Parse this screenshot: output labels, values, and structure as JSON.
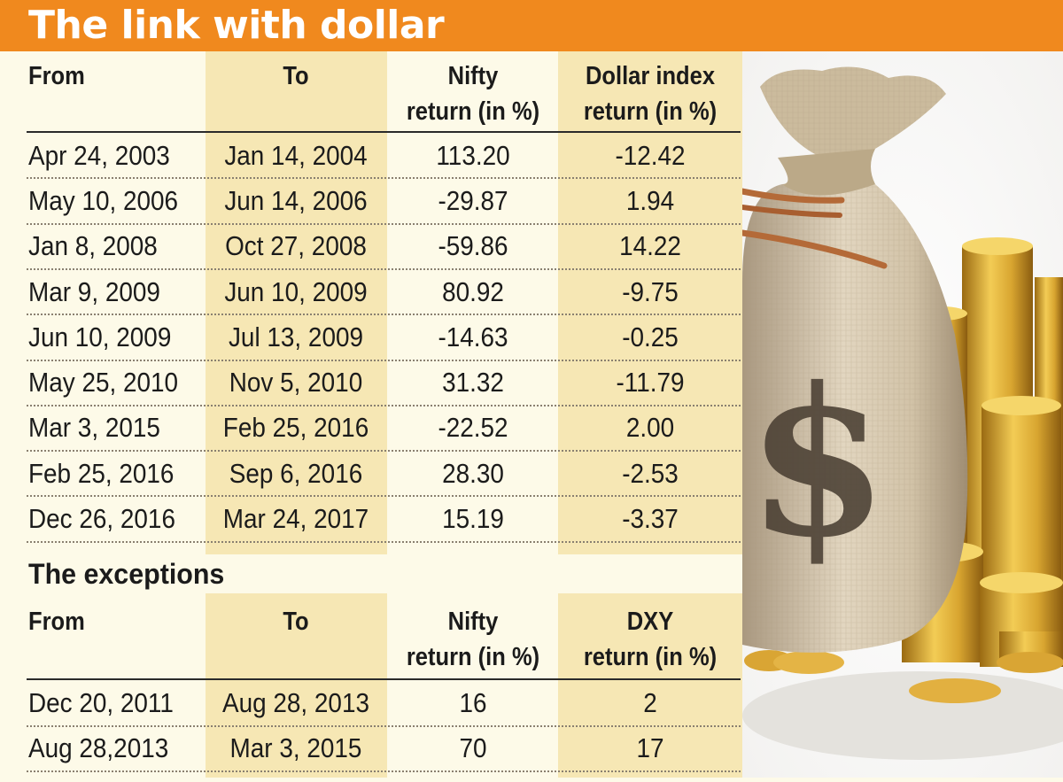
{
  "title": "The link with dollar",
  "chart_data": [
    {
      "type": "table",
      "columns": [
        "From",
        "To",
        "Nifty return (in %)",
        "Dollar index return (in %)"
      ],
      "header_lines": [
        [
          "From"
        ],
        [
          "To"
        ],
        [
          "Nifty",
          "return (in %)"
        ],
        [
          "Dollar index",
          "return (in %)"
        ]
      ],
      "rows": [
        [
          "Apr 24, 2003",
          "Jan 14, 2004",
          "113.20",
          "-12.42"
        ],
        [
          "May 10, 2006",
          "Jun 14, 2006",
          "-29.87",
          "1.94"
        ],
        [
          "Jan 8, 2008",
          "Oct 27, 2008",
          "-59.86",
          "14.22"
        ],
        [
          "Mar 9, 2009",
          "Jun 10, 2009",
          "80.92",
          "-9.75"
        ],
        [
          "Jun 10, 2009",
          "Jul 13, 2009",
          "-14.63",
          "-0.25"
        ],
        [
          "May 25, 2010",
          "Nov 5, 2010",
          "31.32",
          "-11.79"
        ],
        [
          "Mar 3, 2015",
          "Feb 25, 2016",
          "-22.52",
          "2.00"
        ],
        [
          "Feb 25, 2016",
          "Sep 6, 2016",
          "28.30",
          "-2.53"
        ],
        [
          "Dec 26, 2016",
          "Mar 24, 2017",
          "15.19",
          "-3.37"
        ]
      ]
    },
    {
      "type": "table",
      "title": "The exceptions",
      "columns": [
        "From",
        "To",
        "Nifty return (in %)",
        "DXY return (in %)"
      ],
      "header_lines": [
        [
          "From"
        ],
        [
          "To"
        ],
        [
          "Nifty",
          "return (in %)"
        ],
        [
          "DXY",
          "return (in %)"
        ]
      ],
      "rows": [
        [
          "Dec 20, 2011",
          "Aug 28, 2013",
          "16",
          "2"
        ],
        [
          "Aug 28,2013",
          "Mar 3, 2015",
          "70",
          "17"
        ]
      ]
    }
  ],
  "colors": {
    "title_bar": "#f0891e",
    "background": "#fdfae8",
    "column_band": "#f6e7b4",
    "text": "#1b1b1b"
  },
  "image": {
    "icons": [
      "money-bag-icon",
      "dollar-sign-icon",
      "gold-coins-icon"
    ],
    "symbol": "$"
  }
}
